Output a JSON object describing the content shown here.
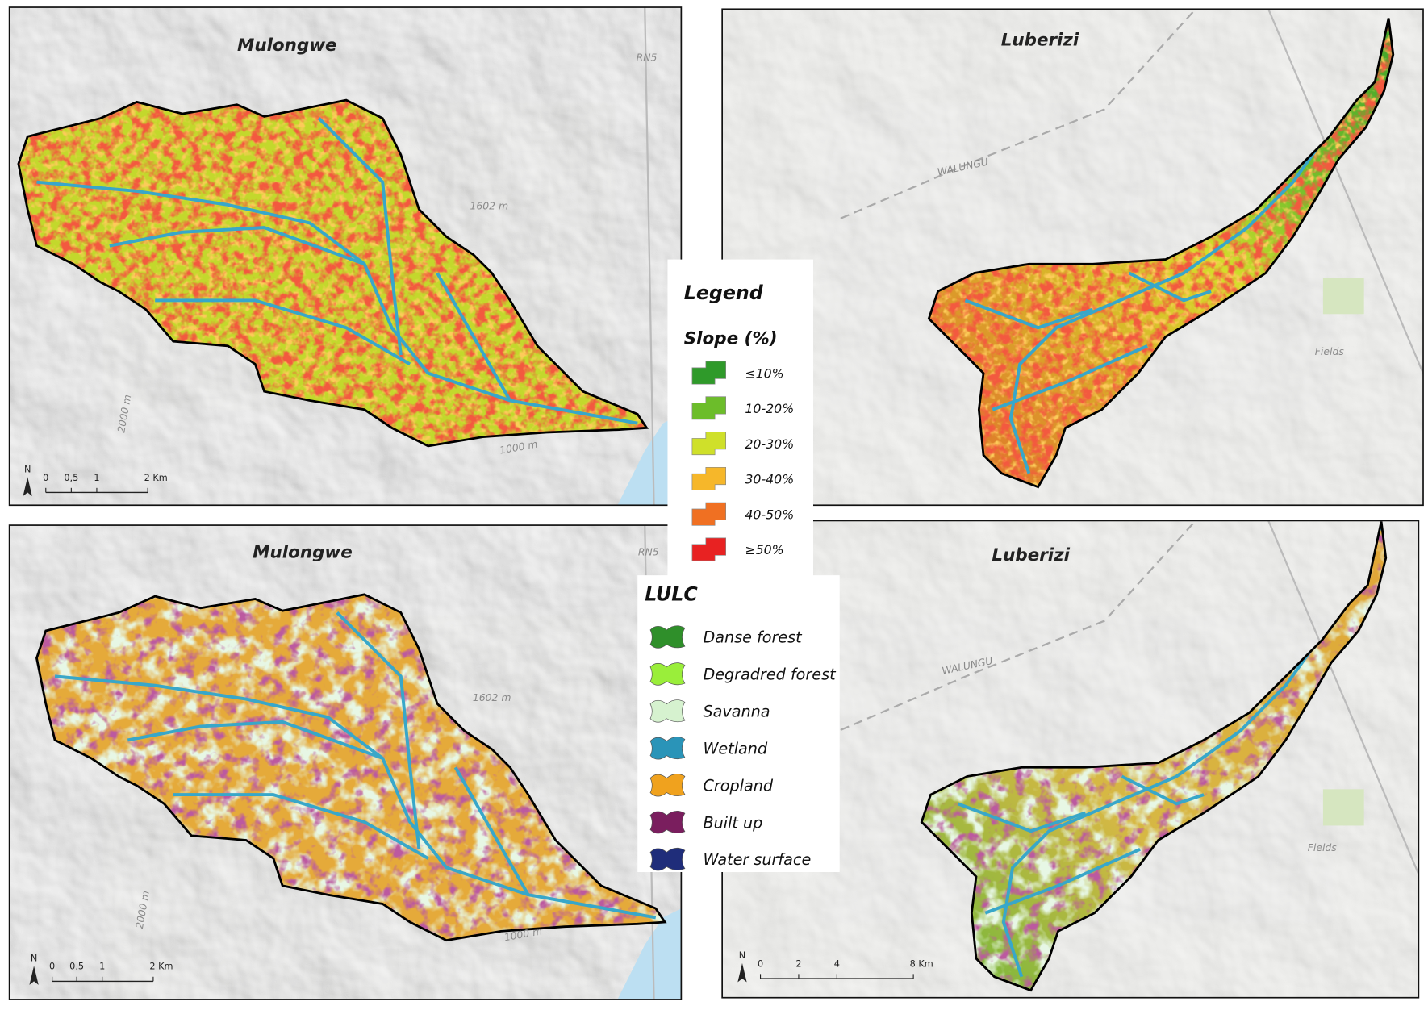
{
  "panels": [
    {
      "title": "Mulongwe",
      "labels": [
        "RN5",
        "1602 m",
        "2000 m",
        "1000 m"
      ],
      "north": "N",
      "scale": [
        "0",
        "0,5",
        "1",
        "2 Km"
      ]
    },
    {
      "title": "Luberizi",
      "labels": [
        "WALUNGU",
        "Fields"
      ]
    },
    {
      "title": "Mulongwe",
      "labels": [
        "RN5",
        "1602 m",
        "2000 m",
        "1000 m"
      ],
      "north": "N",
      "scale": [
        "0",
        "0,5",
        "1",
        "2 Km"
      ]
    },
    {
      "title": "Luberizi",
      "labels": [
        "WALUNGU",
        "Fields"
      ],
      "north": "N",
      "scale": [
        "0",
        "2",
        "4",
        "8 Km"
      ]
    }
  ],
  "legend": {
    "title": "Legend",
    "slope": {
      "title": "Slope (%)",
      "items": [
        "≤10%",
        "10-20%",
        "20-30%",
        "30-40%",
        "40-50%",
        "≥50%"
      ]
    },
    "lulc": {
      "title": "LULC",
      "items": [
        "Danse forest",
        "Degradred forest",
        "Savanna",
        "Wetland",
        "Cropland",
        "Built up",
        "Water surface"
      ]
    }
  }
}
